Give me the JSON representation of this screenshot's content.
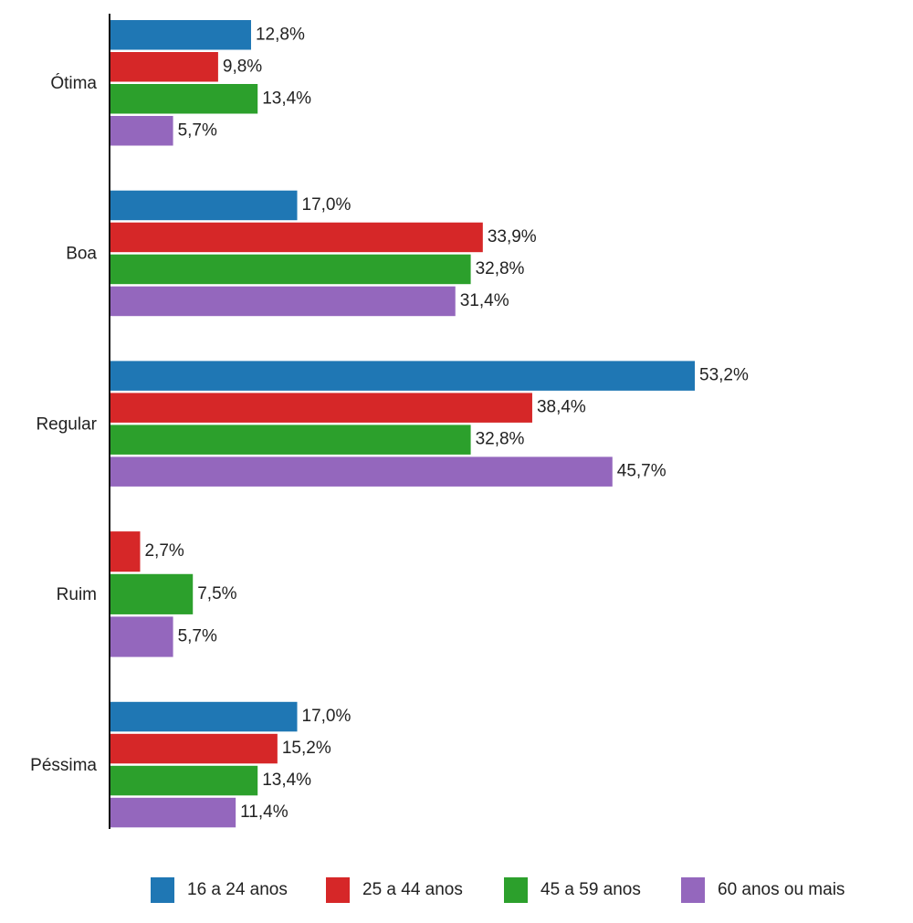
{
  "chart_data": {
    "type": "hbar",
    "categories": [
      "Ótima",
      "Boa",
      "Regular",
      "Ruim",
      "Péssima"
    ],
    "series": [
      {
        "name": "16 a 24 anos",
        "color": "#1f77b4",
        "values": [
          12.8,
          17.0,
          53.2,
          null,
          17.0
        ],
        "value_labels": [
          "12,8%",
          "17,0%",
          "53,2%",
          null,
          "17,0%"
        ]
      },
      {
        "name": "25 a 44 anos",
        "color": "#d62728",
        "values": [
          9.8,
          33.9,
          38.4,
          2.7,
          15.2
        ],
        "value_labels": [
          "9,8%",
          "33,9%",
          "38,4%",
          "2,7%",
          "15,2%"
        ]
      },
      {
        "name": "45 a 59 anos",
        "color": "#2ca02c",
        "values": [
          13.4,
          32.8,
          32.8,
          7.5,
          13.4
        ],
        "value_labels": [
          "13,4%",
          "32,8%",
          "32,8%",
          "7,5%",
          "13,4%"
        ]
      },
      {
        "name": "60 anos ou mais",
        "color": "#9467bd",
        "values": [
          5.7,
          31.4,
          45.7,
          5.7,
          11.4
        ],
        "value_labels": [
          "5,7%",
          "31,4%",
          "45,7%",
          "5,7%",
          "11,4%"
        ]
      }
    ],
    "legend": "bottom"
  }
}
